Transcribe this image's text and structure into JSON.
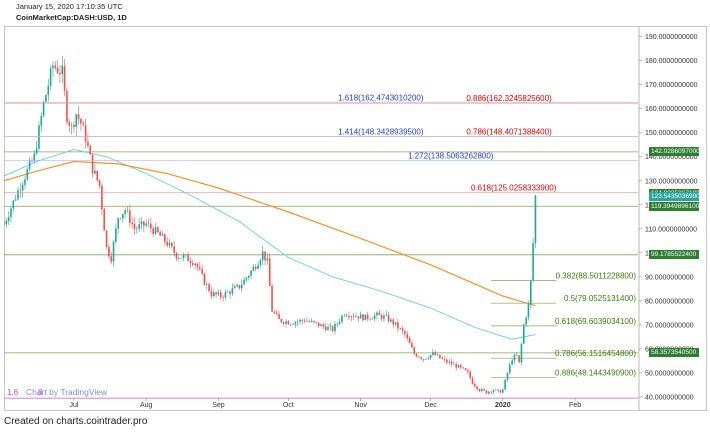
{
  "header": {
    "date": "January 15, 2020 17:10:35 UTC",
    "title": "CoinMarketCap:DASH:USD, 1D"
  },
  "footer": {
    "text": "Created on charts.cointrader.pro"
  },
  "watermark": "Chart by TradingView",
  "colors": {
    "up": "#26a69a",
    "down": "#ef5350",
    "ma_orange": "#f5922f",
    "ma_blue": "#78cfe0",
    "fib_red": "#d80000",
    "fib_blue": "#1a3fcf",
    "fib_green": "#3d7a12",
    "tag_green": "#2e7d32",
    "magenta": "#d63ad6"
  },
  "chart_data": {
    "type": "candlestick",
    "y_axis": {
      "min": 35,
      "max": 194,
      "ticks": [
        {
          "value": 40,
          "label": "40.0000000000"
        },
        {
          "value": 50,
          "label": "50.0000000000"
        },
        {
          "value": 60,
          "label": "60.0000000000"
        },
        {
          "value": 70,
          "label": "70.0000000000"
        },
        {
          "value": 80,
          "label": "80.0000000000"
        },
        {
          "value": 90,
          "label": "90.0000000000"
        },
        {
          "value": 100,
          "label": "100.0000000000"
        },
        {
          "value": 110,
          "label": "110.0000000000"
        },
        {
          "value": 120,
          "label": "120.0000000000"
        },
        {
          "value": 130,
          "label": "130.0000000000"
        },
        {
          "value": 140,
          "label": "140.0000000000"
        },
        {
          "value": 150,
          "label": "150.0000000000"
        },
        {
          "value": 160,
          "label": "160.0000000000"
        },
        {
          "value": 170,
          "label": "170.0000000000"
        },
        {
          "value": 180,
          "label": "180.0000000000"
        },
        {
          "value": 190,
          "label": "190.0000000000"
        }
      ]
    },
    "x_axis": {
      "first_date": "2019-06-01",
      "last_date": "2020-02-28",
      "ticks": [
        {
          "date": "2019-07-01",
          "label": "Jul",
          "bold": false
        },
        {
          "date": "2019-08-01",
          "label": "Aug",
          "bold": false
        },
        {
          "date": "2019-09-01",
          "label": "Sep",
          "bold": false
        },
        {
          "date": "2019-10-01",
          "label": "Oct",
          "bold": false
        },
        {
          "date": "2019-11-01",
          "label": "Nov",
          "bold": false
        },
        {
          "date": "2019-12-01",
          "label": "Dec",
          "bold": false
        },
        {
          "date": "2020-01-01",
          "label": "2020",
          "bold": true
        },
        {
          "date": "2020-02-01",
          "label": "Feb",
          "bold": false
        }
      ]
    },
    "price_path": [
      [
        "2019-06-01",
        112
      ],
      [
        "2019-06-08",
        128
      ],
      [
        "2019-06-14",
        140
      ],
      [
        "2019-06-18",
        162
      ],
      [
        "2019-06-22",
        178
      ],
      [
        "2019-06-26",
        175
      ],
      [
        "2019-06-28",
        157
      ],
      [
        "2019-06-30",
        152
      ],
      [
        "2019-07-02",
        158
      ],
      [
        "2019-07-04",
        154
      ],
      [
        "2019-07-06",
        148
      ],
      [
        "2019-07-09",
        135
      ],
      [
        "2019-07-12",
        128
      ],
      [
        "2019-07-15",
        102
      ],
      [
        "2019-07-17",
        98
      ],
      [
        "2019-07-20",
        115
      ],
      [
        "2019-07-23",
        118
      ],
      [
        "2019-07-27",
        110
      ],
      [
        "2019-08-01",
        112
      ],
      [
        "2019-08-06",
        108
      ],
      [
        "2019-08-10",
        104
      ],
      [
        "2019-08-14",
        99
      ],
      [
        "2019-08-18",
        98
      ],
      [
        "2019-08-22",
        96
      ],
      [
        "2019-08-26",
        88
      ],
      [
        "2019-08-29",
        83
      ],
      [
        "2019-09-02",
        82
      ],
      [
        "2019-09-06",
        84
      ],
      [
        "2019-09-10",
        86
      ],
      [
        "2019-09-14",
        91
      ],
      [
        "2019-09-17",
        95
      ],
      [
        "2019-09-20",
        100
      ],
      [
        "2019-09-22",
        96
      ],
      [
        "2019-09-24",
        76
      ],
      [
        "2019-09-27",
        72
      ],
      [
        "2019-10-02",
        71
      ],
      [
        "2019-10-08",
        72
      ],
      [
        "2019-10-14",
        70
      ],
      [
        "2019-10-20",
        68
      ],
      [
        "2019-10-25",
        75
      ],
      [
        "2019-10-29",
        74
      ],
      [
        "2019-11-03",
        73
      ],
      [
        "2019-11-08",
        74
      ],
      [
        "2019-11-12",
        73
      ],
      [
        "2019-11-16",
        70
      ],
      [
        "2019-11-20",
        66
      ],
      [
        "2019-11-24",
        58
      ],
      [
        "2019-11-28",
        56
      ],
      [
        "2019-12-02",
        58
      ],
      [
        "2019-12-07",
        55
      ],
      [
        "2019-12-12",
        53
      ],
      [
        "2019-12-17",
        50
      ],
      [
        "2019-12-19",
        46
      ],
      [
        "2019-12-22",
        43
      ],
      [
        "2019-12-25",
        42
      ],
      [
        "2019-12-28",
        43
      ],
      [
        "2019-12-30",
        42
      ],
      [
        "2020-01-01",
        43
      ],
      [
        "2020-01-03",
        50
      ],
      [
        "2020-01-05",
        56
      ],
      [
        "2020-01-07",
        57
      ],
      [
        "2020-01-08",
        54
      ],
      [
        "2020-01-10",
        70
      ],
      [
        "2020-01-12",
        78
      ],
      [
        "2020-01-13",
        88
      ],
      [
        "2020-01-14",
        104
      ],
      [
        "2020-01-15",
        123.5
      ]
    ],
    "ma_orange_path": [
      [
        "2019-06-01",
        130
      ],
      [
        "2019-06-15",
        134
      ],
      [
        "2019-07-01",
        138
      ],
      [
        "2019-07-20",
        137
      ],
      [
        "2019-08-10",
        133
      ],
      [
        "2019-09-01",
        127
      ],
      [
        "2019-10-01",
        117
      ],
      [
        "2019-11-01",
        106
      ],
      [
        "2019-12-01",
        95
      ],
      [
        "2020-01-01",
        82
      ],
      [
        "2020-01-15",
        78
      ]
    ],
    "ma_blue_path": [
      [
        "2019-06-01",
        132
      ],
      [
        "2019-06-15",
        138
      ],
      [
        "2019-07-01",
        143
      ],
      [
        "2019-07-15",
        140
      ],
      [
        "2019-08-01",
        133
      ],
      [
        "2019-08-20",
        124
      ],
      [
        "2019-09-10",
        113
      ],
      [
        "2019-10-01",
        98
      ],
      [
        "2019-10-20",
        90
      ],
      [
        "2019-11-10",
        84
      ],
      [
        "2019-12-01",
        77
      ],
      [
        "2019-12-20",
        69
      ],
      [
        "2020-01-05",
        64
      ],
      [
        "2020-01-15",
        66
      ]
    ],
    "fib_levels_upper": [
      {
        "price": 162.47430102,
        "label": "1.618(162.4743010200)",
        "color": "#1a3fcf",
        "label_date": "2019-11-28"
      },
      {
        "price": 162.32458256,
        "label": "0.886(162.3245825600)",
        "color": "#d80000",
        "label_date": "2020-01-22"
      },
      {
        "price": 148.40713884,
        "label": "0.786(148.4071388400)",
        "color": "#d80000",
        "label_date": "2020-01-22"
      },
      {
        "price": 148.34289395,
        "label": "1.414(148.3428939500)",
        "color": "#1a3fcf",
        "label_date": "2019-11-28"
      },
      {
        "price": 138.50632628,
        "label": "1.272(138.5063262800)",
        "color": "#1a3fcf",
        "label_date": "2019-12-28"
      },
      {
        "price": 125.02583339,
        "label": "0.618(125.0258333900)",
        "color": "#d80000",
        "label_date": "2020-01-24"
      }
    ],
    "fib_levels_lower": [
      {
        "price": 88.50112288,
        "label": "0.382(88.5011228800)",
        "color": "#3d7a12"
      },
      {
        "price": 79.05251314,
        "label": "0.5(79.0525131400)",
        "color": "#3d7a12"
      },
      {
        "price": 69.60390341,
        "label": "0.618(69.6039034100)",
        "color": "#3d7a12"
      },
      {
        "price": 56.15164548,
        "label": "0.786(56.1516454800)",
        "color": "#3d7a12"
      },
      {
        "price": 48.14434909,
        "label": "0.886(48.1443490900)",
        "color": "#3d7a12"
      }
    ],
    "horizontal_lines": [
      {
        "price": 142.0286097,
        "color": "#8aa05a"
      },
      {
        "price": 119.39498961,
        "color": "#8aa05a"
      },
      {
        "price": 99.17855224,
        "color": "#8aa05a"
      },
      {
        "price": 58.35735405,
        "color": "#8aa05a"
      },
      {
        "price": 39.5,
        "color": "#d63ad6"
      }
    ],
    "price_tags": [
      {
        "price": 142.0286097,
        "label": "142.0286097000",
        "color": "#2e7d32"
      },
      {
        "price": 124.88858671,
        "label": "124.8885867100",
        "color": "#2e7d32"
      },
      {
        "price": 123.54350369,
        "label": "123.5435036900",
        "color": "#26a69a"
      },
      {
        "price": 119.39498961,
        "label": "119.3949896100",
        "color": "#2e7d32"
      },
      {
        "price": 99.17855224,
        "label": "99.1785522400",
        "color": "#2e7d32"
      },
      {
        "price": 58.35735405,
        "label": "58.3573540500",
        "color": "#2e7d32"
      }
    ],
    "left_fib_stub": "1.6",
    "left_fib_stub2": "8"
  }
}
